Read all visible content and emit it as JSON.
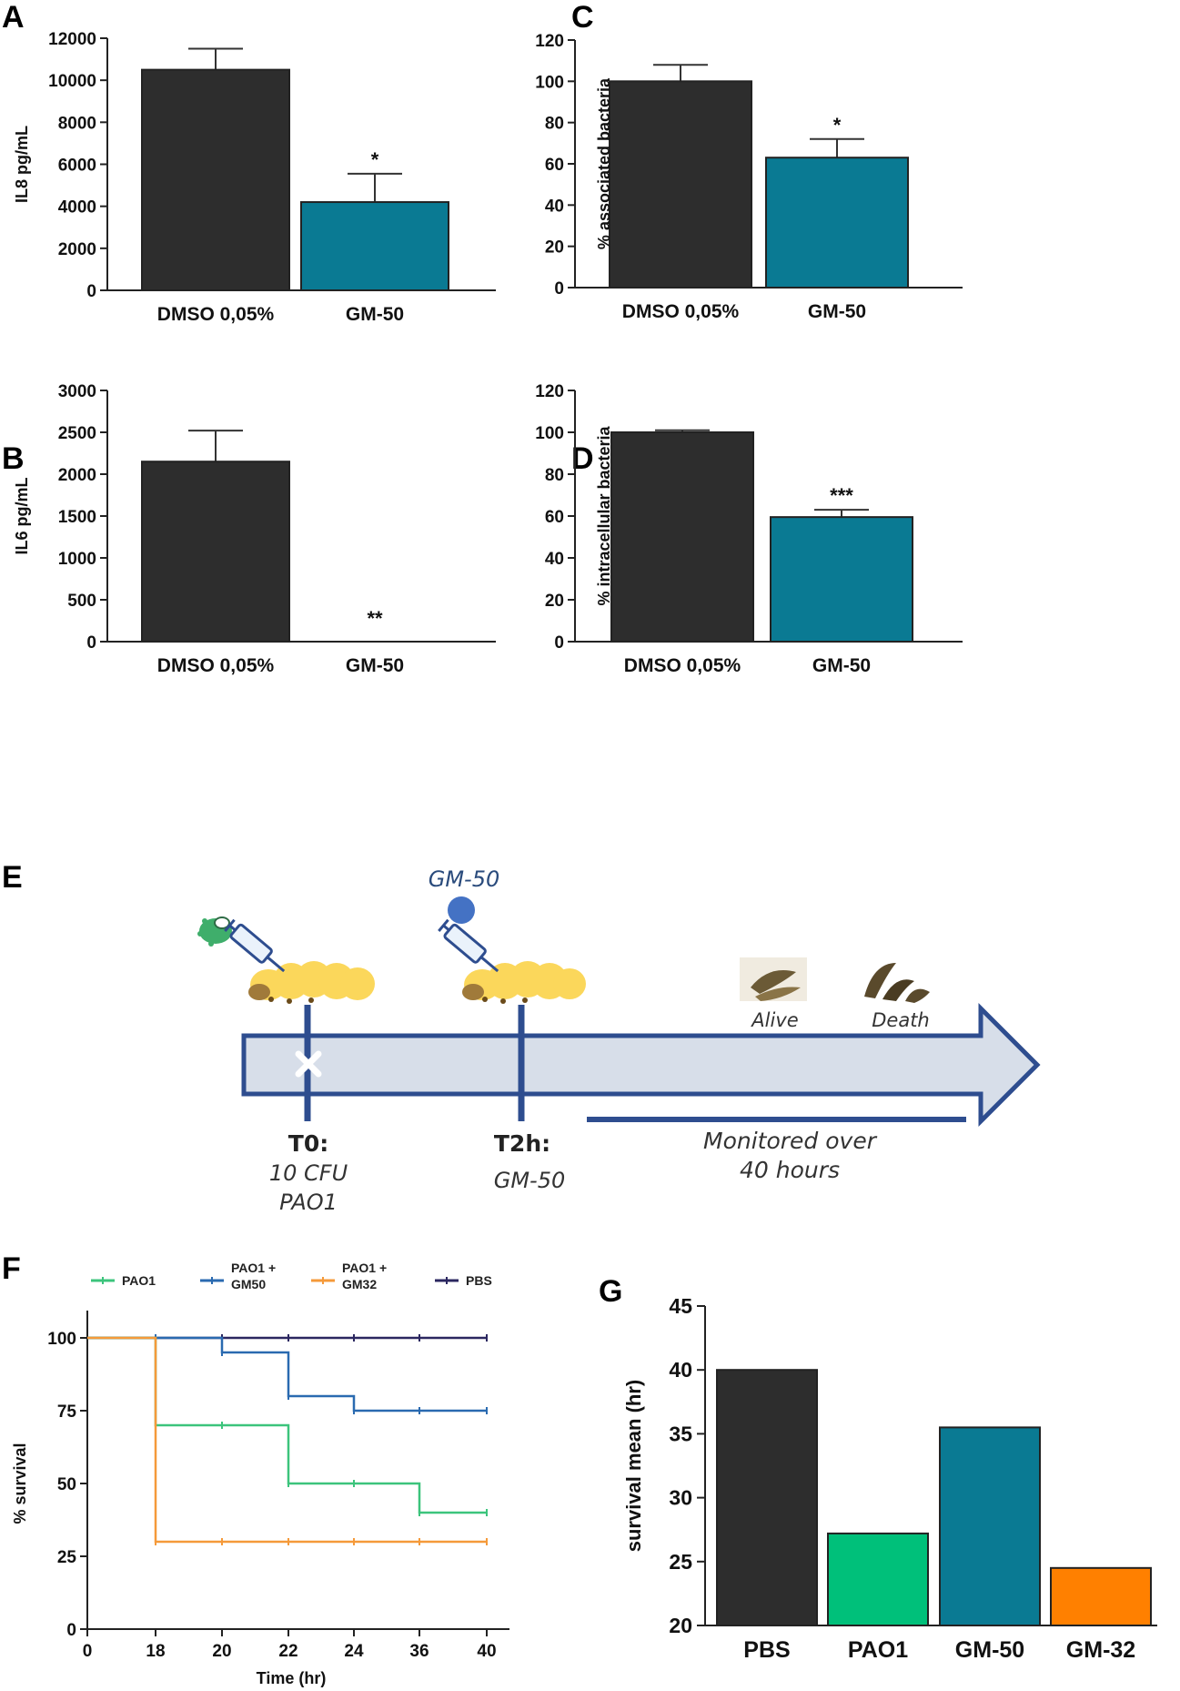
{
  "panel_labels": [
    "A",
    "B",
    "C",
    "D",
    "E",
    "F",
    "G"
  ],
  "colors": {
    "dark": "#2d2d2d",
    "teal": "#0a7a93",
    "green": "#00c07a",
    "orange": "#ff8000",
    "f_pao1": "#3cc47c",
    "f_gm50": "#2a6ab0",
    "f_gm32": "#f59a3a",
    "f_pbs": "#2b2760",
    "arrow_fill": "#d7dee9",
    "arrow_stroke": "#2e4d8f"
  },
  "chart_data": [
    {
      "id": "A",
      "type": "bar",
      "categories": [
        "DMSO 0,05%",
        "GM-50"
      ],
      "values": [
        10500,
        4200
      ],
      "errors": [
        1000,
        1350
      ],
      "significance": [
        "",
        "*"
      ],
      "ylabel": "IL8 pg/mL",
      "ylim": [
        0,
        12000
      ],
      "yticks": [
        0,
        2000,
        4000,
        6000,
        8000,
        10000,
        12000
      ]
    },
    {
      "id": "B",
      "type": "bar",
      "categories": [
        "DMSO 0,05%",
        "GM-50"
      ],
      "values": [
        2150,
        0
      ],
      "errors": [
        370,
        0
      ],
      "significance": [
        "",
        "**"
      ],
      "ylabel": "IL6 pg/mL",
      "ylim": [
        0,
        3000
      ],
      "yticks": [
        0,
        500,
        1000,
        1500,
        2000,
        2500,
        3000
      ]
    },
    {
      "id": "C",
      "type": "bar",
      "categories": [
        "DMSO 0,05%",
        "GM-50"
      ],
      "values": [
        100,
        63
      ],
      "errors": [
        8,
        9
      ],
      "significance": [
        "",
        "*"
      ],
      "ylabel": "% associated bacteria",
      "ylim": [
        0,
        120
      ],
      "yticks": [
        0,
        20,
        40,
        60,
        80,
        100,
        120
      ]
    },
    {
      "id": "D",
      "type": "bar",
      "categories": [
        "DMSO 0,05%",
        "GM-50"
      ],
      "values": [
        100,
        59.5
      ],
      "errors": [
        1,
        3.5
      ],
      "significance": [
        "",
        "***"
      ],
      "ylabel": "% intracellular bacteria",
      "ylim": [
        0,
        120
      ],
      "yticks": [
        0,
        20,
        40,
        60,
        80,
        100,
        120
      ]
    },
    {
      "id": "F",
      "type": "line",
      "xlabel": "Time (hr)",
      "ylabel": "% survival",
      "xticks": [
        0,
        18,
        20,
        22,
        24,
        36,
        40
      ],
      "yticks": [
        0,
        25,
        50,
        75,
        100
      ],
      "ylim": [
        0,
        100
      ],
      "series": [
        {
          "name": "PAO1",
          "legend": [
            "PAO1"
          ],
          "steps": [
            [
              0,
              100
            ],
            [
              18,
              70
            ],
            [
              22,
              50
            ],
            [
              36,
              40
            ],
            [
              40,
              40
            ]
          ]
        },
        {
          "name": "PAO1 + GM50",
          "legend": [
            "PAO1 +",
            "GM50"
          ],
          "steps": [
            [
              0,
              100
            ],
            [
              20,
              95
            ],
            [
              22,
              80
            ],
            [
              24,
              75
            ],
            [
              40,
              75
            ]
          ]
        },
        {
          "name": "PAO1 + GM32",
          "legend": [
            "PAO1 +",
            "GM32"
          ],
          "steps": [
            [
              0,
              100
            ],
            [
              18,
              30
            ],
            [
              40,
              30
            ]
          ]
        },
        {
          "name": "PBS",
          "legend": [
            "PBS"
          ],
          "steps": [
            [
              0,
              100
            ],
            [
              40,
              100
            ]
          ]
        }
      ]
    },
    {
      "id": "G",
      "type": "bar",
      "categories": [
        "PBS",
        "PAO1",
        "GM-50",
        "GM-32"
      ],
      "values": [
        40,
        27.2,
        35.5,
        24.5
      ],
      "ylabel": "survival mean (hr)",
      "ylim": [
        20,
        45
      ],
      "yticks": [
        20,
        25,
        30,
        35,
        40,
        45
      ]
    }
  ],
  "timeline": {
    "top_label": "GM-50",
    "alive": "Alive",
    "death": "Death",
    "t0_title": "T0:",
    "t0_lines": [
      "10 CFU",
      "PAO1"
    ],
    "t2_title": "T2h:",
    "t2_line": "GM-50",
    "monitor_lines": [
      "Monitored over",
      "40 hours"
    ]
  }
}
